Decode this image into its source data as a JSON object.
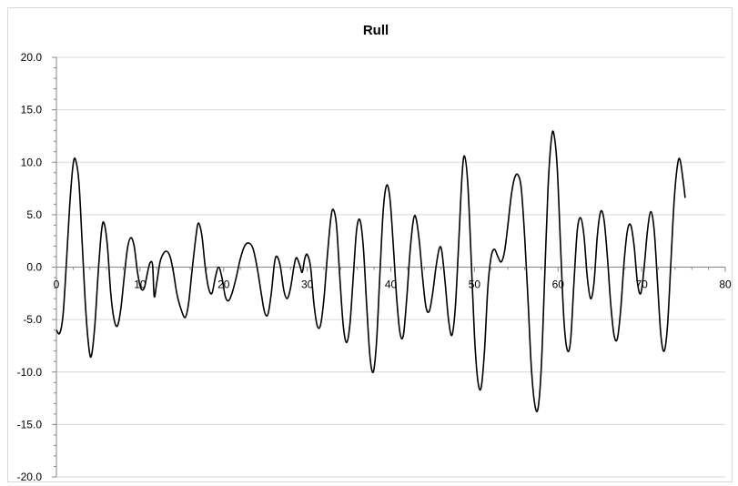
{
  "chart_data": {
    "type": "line",
    "title": "Rull",
    "xlabel": "",
    "ylabel": "",
    "xlim": [
      0,
      80
    ],
    "ylim": [
      -20,
      20
    ],
    "x_ticks": [
      0,
      10,
      20,
      30,
      40,
      50,
      60,
      70,
      80
    ],
    "y_ticks": [
      -20,
      -15,
      -10,
      -5,
      0,
      5,
      10,
      15,
      20
    ],
    "y_tick_labels": [
      "-20.0",
      "-15.0",
      "-10.0",
      "-5.0",
      "0.0",
      "5.0",
      "10.0",
      "15.0",
      "20.0"
    ],
    "x_tick_labels": [
      "0",
      "10",
      "20",
      "30",
      "40",
      "50",
      "60",
      "70",
      "80"
    ],
    "grid": "horizontal major",
    "legend": "none",
    "line_color": "#000000",
    "series": [
      {
        "points": [
          [
            0.0,
            -6.0
          ],
          [
            0.4,
            -6.3
          ],
          [
            0.8,
            -4.5
          ],
          [
            1.2,
            0.5
          ],
          [
            1.6,
            6.0
          ],
          [
            2.0,
            9.8
          ],
          [
            2.3,
            10.2
          ],
          [
            2.7,
            8.0
          ],
          [
            3.1,
            2.0
          ],
          [
            3.5,
            -4.0
          ],
          [
            3.9,
            -7.8
          ],
          [
            4.2,
            -8.4
          ],
          [
            4.6,
            -5.5
          ],
          [
            5.0,
            -0.5
          ],
          [
            5.4,
            3.5
          ],
          [
            5.7,
            4.2
          ],
          [
            6.1,
            2.0
          ],
          [
            6.5,
            -2.5
          ],
          [
            6.9,
            -5.0
          ],
          [
            7.3,
            -5.6
          ],
          [
            7.7,
            -4.0
          ],
          [
            8.1,
            -1.0
          ],
          [
            8.5,
            1.8
          ],
          [
            8.9,
            2.8
          ],
          [
            9.3,
            2.0
          ],
          [
            9.7,
            -0.5
          ],
          [
            10.1,
            -2.0
          ],
          [
            10.5,
            -2.0
          ],
          [
            10.9,
            -0.5
          ],
          [
            11.2,
            0.4
          ],
          [
            11.5,
            0.2
          ],
          [
            11.7,
            -2.8
          ],
          [
            12.0,
            -1.5
          ],
          [
            12.4,
            0.5
          ],
          [
            12.8,
            1.3
          ],
          [
            13.2,
            1.5
          ],
          [
            13.6,
            1.0
          ],
          [
            14.0,
            -0.5
          ],
          [
            14.4,
            -2.5
          ],
          [
            14.9,
            -4.0
          ],
          [
            15.4,
            -4.8
          ],
          [
            15.8,
            -3.5
          ],
          [
            16.2,
            -0.5
          ],
          [
            16.7,
            3.0
          ],
          [
            17.0,
            4.2
          ],
          [
            17.4,
            3.0
          ],
          [
            17.8,
            0.0
          ],
          [
            18.2,
            -2.0
          ],
          [
            18.6,
            -2.5
          ],
          [
            19.0,
            -1.0
          ],
          [
            19.4,
            0.0
          ],
          [
            19.8,
            -1.0
          ],
          [
            20.2,
            -2.8
          ],
          [
            20.6,
            -3.2
          ],
          [
            21.0,
            -2.5
          ],
          [
            21.5,
            -1.0
          ],
          [
            22.0,
            0.8
          ],
          [
            22.5,
            2.0
          ],
          [
            23.0,
            2.3
          ],
          [
            23.5,
            1.8
          ],
          [
            24.0,
            0.0
          ],
          [
            24.5,
            -2.5
          ],
          [
            24.9,
            -4.3
          ],
          [
            25.3,
            -4.5
          ],
          [
            25.7,
            -2.5
          ],
          [
            26.1,
            0.5
          ],
          [
            26.4,
            1.0
          ],
          [
            26.8,
            0.0
          ],
          [
            27.2,
            -2.2
          ],
          [
            27.6,
            -3.0
          ],
          [
            28.0,
            -2.0
          ],
          [
            28.4,
            0.0
          ],
          [
            28.7,
            0.9
          ],
          [
            29.1,
            0.2
          ],
          [
            29.4,
            -0.5
          ],
          [
            29.7,
            0.8
          ],
          [
            30.0,
            1.2
          ],
          [
            30.4,
            0.0
          ],
          [
            30.8,
            -3.5
          ],
          [
            31.2,
            -5.6
          ],
          [
            31.6,
            -5.5
          ],
          [
            32.0,
            -3.0
          ],
          [
            32.4,
            1.0
          ],
          [
            32.8,
            4.5
          ],
          [
            33.1,
            5.5
          ],
          [
            33.5,
            4.0
          ],
          [
            33.9,
            -1.0
          ],
          [
            34.3,
            -5.5
          ],
          [
            34.7,
            -7.2
          ],
          [
            35.1,
            -5.5
          ],
          [
            35.5,
            -1.0
          ],
          [
            35.9,
            3.5
          ],
          [
            36.3,
            4.5
          ],
          [
            36.7,
            2.0
          ],
          [
            37.1,
            -3.5
          ],
          [
            37.5,
            -8.5
          ],
          [
            37.9,
            -10.0
          ],
          [
            38.3,
            -7.0
          ],
          [
            38.7,
            -0.5
          ],
          [
            39.1,
            5.5
          ],
          [
            39.5,
            7.8
          ],
          [
            39.9,
            6.5
          ],
          [
            40.3,
            2.0
          ],
          [
            40.7,
            -3.0
          ],
          [
            41.1,
            -6.3
          ],
          [
            41.5,
            -6.5
          ],
          [
            41.9,
            -3.0
          ],
          [
            42.3,
            1.5
          ],
          [
            42.7,
            4.5
          ],
          [
            43.0,
            4.7
          ],
          [
            43.4,
            2.5
          ],
          [
            43.8,
            -1.0
          ],
          [
            44.2,
            -3.8
          ],
          [
            44.6,
            -4.2
          ],
          [
            45.0,
            -2.5
          ],
          [
            45.4,
            0.0
          ],
          [
            45.8,
            1.8
          ],
          [
            46.1,
            1.5
          ],
          [
            46.5,
            -1.5
          ],
          [
            46.9,
            -5.0
          ],
          [
            47.3,
            -6.5
          ],
          [
            47.7,
            -4.0
          ],
          [
            48.1,
            2.0
          ],
          [
            48.5,
            8.5
          ],
          [
            48.8,
            10.6
          ],
          [
            49.2,
            8.0
          ],
          [
            49.6,
            1.0
          ],
          [
            50.0,
            -6.5
          ],
          [
            50.4,
            -10.8
          ],
          [
            50.8,
            -11.5
          ],
          [
            51.2,
            -8.0
          ],
          [
            51.6,
            -2.0
          ],
          [
            52.0,
            1.0
          ],
          [
            52.4,
            1.7
          ],
          [
            52.8,
            1.0
          ],
          [
            53.2,
            0.5
          ],
          [
            53.6,
            1.5
          ],
          [
            54.0,
            4.0
          ],
          [
            54.4,
            6.8
          ],
          [
            54.8,
            8.5
          ],
          [
            55.2,
            8.8
          ],
          [
            55.6,
            7.5
          ],
          [
            56.0,
            3.0
          ],
          [
            56.4,
            -3.0
          ],
          [
            56.8,
            -9.5
          ],
          [
            57.2,
            -13.0
          ],
          [
            57.6,
            -13.5
          ],
          [
            58.0,
            -9.5
          ],
          [
            58.4,
            -1.0
          ],
          [
            58.8,
            7.5
          ],
          [
            59.2,
            12.2
          ],
          [
            59.5,
            12.7
          ],
          [
            59.9,
            9.5
          ],
          [
            60.3,
            2.0
          ],
          [
            60.7,
            -5.0
          ],
          [
            61.1,
            -7.9
          ],
          [
            61.5,
            -7.0
          ],
          [
            61.9,
            -1.5
          ],
          [
            62.3,
            3.5
          ],
          [
            62.7,
            4.7
          ],
          [
            63.1,
            3.0
          ],
          [
            63.5,
            -1.0
          ],
          [
            63.9,
            -3.0
          ],
          [
            64.3,
            -1.5
          ],
          [
            64.7,
            3.0
          ],
          [
            65.1,
            5.3
          ],
          [
            65.5,
            4.5
          ],
          [
            65.9,
            1.0
          ],
          [
            66.3,
            -3.5
          ],
          [
            66.7,
            -6.5
          ],
          [
            67.1,
            -6.8
          ],
          [
            67.5,
            -4.0
          ],
          [
            67.9,
            0.5
          ],
          [
            68.3,
            3.5
          ],
          [
            68.7,
            4.0
          ],
          [
            69.1,
            2.0
          ],
          [
            69.5,
            -1.5
          ],
          [
            69.9,
            -2.5
          ],
          [
            70.3,
            0.0
          ],
          [
            70.7,
            3.5
          ],
          [
            71.1,
            5.3
          ],
          [
            71.5,
            3.5
          ],
          [
            71.9,
            -1.5
          ],
          [
            72.3,
            -6.5
          ],
          [
            72.7,
            -8.0
          ],
          [
            73.1,
            -5.5
          ],
          [
            73.5,
            0.5
          ],
          [
            73.9,
            6.5
          ],
          [
            74.3,
            9.8
          ],
          [
            74.6,
            10.2
          ],
          [
            75.0,
            8.0
          ],
          [
            75.2,
            6.6
          ]
        ]
      }
    ]
  }
}
